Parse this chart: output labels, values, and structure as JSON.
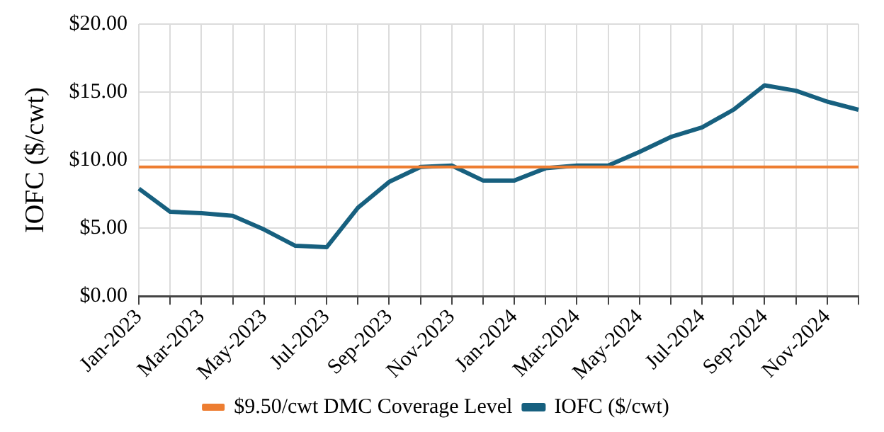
{
  "chart_data": {
    "type": "line",
    "ylabel": "IOFC ($/cwt)",
    "categories": [
      "Jan-2023",
      null,
      "Mar-2023",
      null,
      "May-2023",
      null,
      "Jul-2023",
      null,
      "Sep-2023",
      null,
      "Nov-2023",
      null,
      "Jan-2024",
      null,
      "Mar-2024",
      null,
      "May-2024",
      null,
      "Jul-2024",
      null,
      "Sep-2024",
      null,
      "Nov-2024",
      null
    ],
    "series": [
      {
        "name": "IOFC ($/cwt)",
        "color": "#17607f",
        "values": [
          7.9,
          6.2,
          6.1,
          5.9,
          4.9,
          3.7,
          3.6,
          6.5,
          8.4,
          9.5,
          9.6,
          8.5,
          8.5,
          9.4,
          9.6,
          9.6,
          10.6,
          11.7,
          12.4,
          13.7,
          15.5,
          15.1,
          14.3,
          13.7
        ]
      },
      {
        "name": "$9.50/cwt DMC Coverage Level",
        "color": "#ed7d31",
        "values": [
          9.5,
          9.5,
          9.5,
          9.5,
          9.5,
          9.5,
          9.5,
          9.5,
          9.5,
          9.5,
          9.5,
          9.5,
          9.5,
          9.5,
          9.5,
          9.5,
          9.5,
          9.5,
          9.5,
          9.5,
          9.5,
          9.5,
          9.5,
          9.5
        ]
      }
    ],
    "ylim": [
      0,
      20
    ],
    "yticks": [
      {
        "value": 0,
        "label": "$0.00"
      },
      {
        "value": 5,
        "label": "$5.00"
      },
      {
        "value": 10,
        "label": "$10.00"
      },
      {
        "value": 15,
        "label": "$15.00"
      },
      {
        "value": 20,
        "label": "$20.00"
      }
    ],
    "grid": true,
    "legend": "bottom",
    "marker": "none",
    "line_style": "solid"
  }
}
